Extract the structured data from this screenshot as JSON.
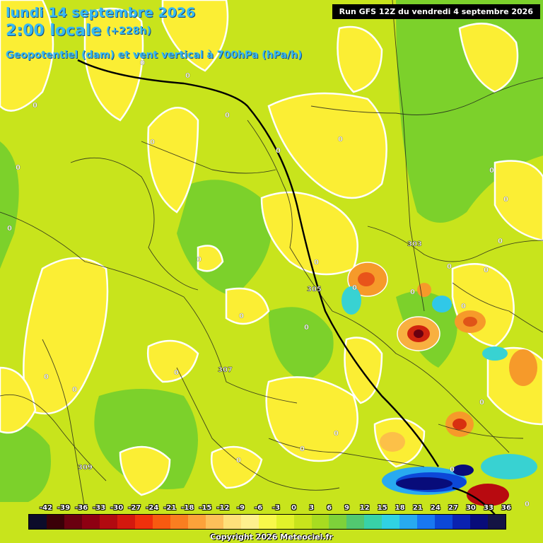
{
  "header": {
    "date": "lundi 14 septembre 2026",
    "time": "2:00 locale",
    "lead": "(+228h)",
    "subtitle": "Geopotentiel (dam) et vent vertical à 700hPa (hPa/h)",
    "run": "Run GFS 12Z du vendredi 4 septembre 2026"
  },
  "contour_labels": [
    "0",
    "0",
    "0",
    "0",
    "0",
    "0",
    "0",
    "0",
    "0",
    "0",
    "0",
    "0",
    "0",
    "0",
    "0",
    "0",
    "0",
    "0",
    "0",
    "0",
    "0",
    "0",
    "0",
    "0",
    "0",
    "0",
    "0",
    "0",
    "0",
    "0",
    "303",
    "305",
    "307",
    "309"
  ],
  "legend": {
    "ticks": [
      "-42",
      "-39",
      "-36",
      "-33",
      "-30",
      "-27",
      "-24",
      "-21",
      "-18",
      "-15",
      "-12",
      "-9",
      "-6",
      "-3",
      "0",
      "3",
      "6",
      "9",
      "12",
      "15",
      "18",
      "21",
      "24",
      "27",
      "30",
      "33",
      "36"
    ],
    "colors": [
      "#0c0c2a",
      "#3a0008",
      "#6a0010",
      "#8e0012",
      "#b20a10",
      "#d4180e",
      "#f0300c",
      "#f85a10",
      "#fa7e20",
      "#fca23a",
      "#fdc05a",
      "#fee07a",
      "#fef08e",
      "#f8f84a",
      "#e2f22a",
      "#c8e41c",
      "#a8dc20",
      "#7ed23a",
      "#52c870",
      "#38d2a8",
      "#30d2e2",
      "#28aaf0",
      "#1878f2",
      "#0c48d8",
      "#0a22b0",
      "#080c7a",
      "#141444"
    ]
  },
  "copyright": "Copyright 2026 Meteociel.fr"
}
